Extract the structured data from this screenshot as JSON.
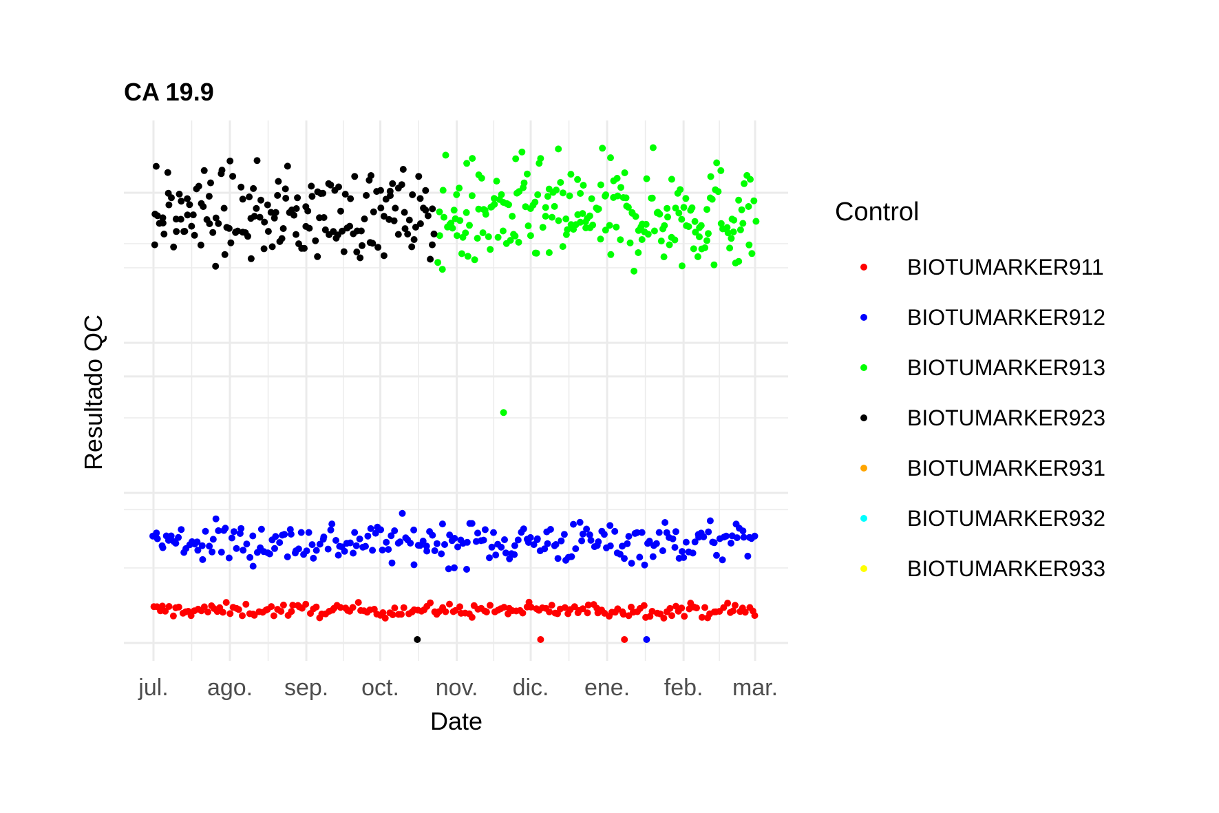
{
  "chart_data": {
    "type": "scatter",
    "title": "CA 19.9",
    "xlabel": "Date",
    "ylabel": "Resultado QC",
    "x_ticks": [
      "jul.",
      "ago.",
      "sep.",
      "oct.",
      "nov.",
      "dic.",
      "ene.",
      "feb.",
      "mar."
    ],
    "y_ticks": [],
    "legend_title": "Control",
    "legend_position": "right",
    "grid": true,
    "note": "y-axis tick labels are not printed; y values estimated on a relative 0-100 scale",
    "ylim": [
      0,
      100
    ],
    "series": [
      {
        "name": "BIOTUMARKER911",
        "color": "#ff0000",
        "x_range": [
          "2023-07-01",
          "2024-03-01"
        ],
        "y_mean": 6,
        "y_spread": 0.7,
        "count": 190,
        "outliers": [
          {
            "x": "2023-12-05",
            "y": 0
          },
          {
            "x": "2024-01-08",
            "y": 0
          }
        ]
      },
      {
        "name": "BIOTUMARKER912",
        "color": "#0000ff",
        "x_range": [
          "2023-07-01",
          "2024-03-01"
        ],
        "y_mean": 20,
        "y_spread": 2.2,
        "count": 240,
        "outliers": [
          {
            "x": "2023-10-31",
            "y": 14.7
          },
          {
            "x": "2024-01-17",
            "y": 0
          }
        ]
      },
      {
        "name": "BIOTUMARKER913",
        "color": "#00ff00",
        "x_range": [
          "2023-10-24",
          "2024-03-01"
        ],
        "y_mean": 87,
        "y_spread": 5.5,
        "count": 220,
        "outliers": [
          {
            "x": "2023-11-20",
            "y": 46.5
          }
        ]
      },
      {
        "name": "BIOTUMARKER923",
        "color": "#000000",
        "x_range": [
          "2023-07-01",
          "2023-10-23"
        ],
        "y_mean": 87,
        "y_spread": 4.5,
        "count": 170,
        "outliers": [
          {
            "x": "2023-10-16",
            "y": 0
          }
        ]
      },
      {
        "name": "BIOTUMARKER931",
        "color": "#ffa500",
        "x_range": [],
        "count": 0
      },
      {
        "name": "BIOTUMARKER932",
        "color": "#00ffff",
        "x_range": [],
        "count": 0
      },
      {
        "name": "BIOTUMARKER933",
        "color": "#ffff00",
        "x_range": [],
        "count": 0
      }
    ]
  }
}
